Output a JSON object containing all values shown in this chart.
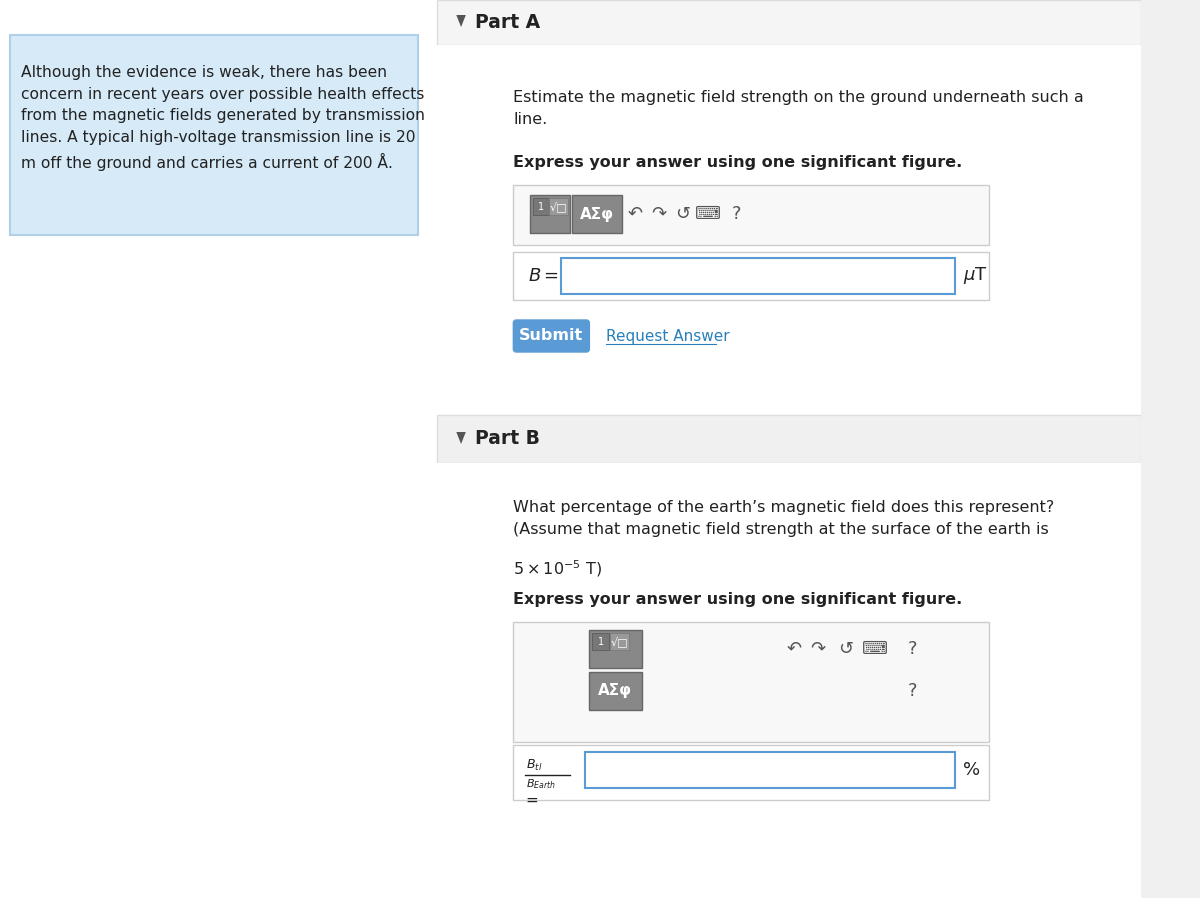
{
  "bg_color": "#f0f0f0",
  "white": "#ffffff",
  "left_panel_bg": "#d6eaf8",
  "left_panel_border": "#b0cfe8",
  "left_text": "Although the evidence is weak, there has been\nconcern in recent years over possible health effects\nfrom the magnetic fields generated by transmission\nlines. A typical high-voltage transmission line is 20\nm off the ground and carries a current of 200 Å.",
  "part_a_label": "Part A",
  "part_a_desc": "Estimate the magnetic field strength on the ground underneath such a\nline.",
  "part_a_bold": "Express your answer using one significant figure.",
  "part_a_eq_left": "B =",
  "part_a_eq_right": "μT",
  "submit_text": "Submit",
  "request_text": "Request Answer",
  "submit_bg": "#5b9bd5",
  "submit_text_color": "#ffffff",
  "request_color": "#2980b9",
  "part_b_label": "Part B",
  "part_b_desc": "What percentage of the earth’s magnetic field does this represent?\n(Assume that magnetic field strength at the surface of the earth is\n5 × 10",
  "part_b_superscript": "−5",
  "part_b_desc_end": " T)",
  "part_b_bold": "Express your answer using one significant figure.",
  "part_b_eq_num": "Bₜₗ",
  "part_b_eq_den": "Bₑₐ⁲ₜₕ",
  "part_b_eq_right": "%",
  "toolbar_bg": "#888888",
  "toolbar_lighter": "#aaaaaa",
  "input_border": "#5b9bd5",
  "panel_border": "#cccccc",
  "arrow_triangle": "#555555",
  "part_b_label2": "Part B"
}
